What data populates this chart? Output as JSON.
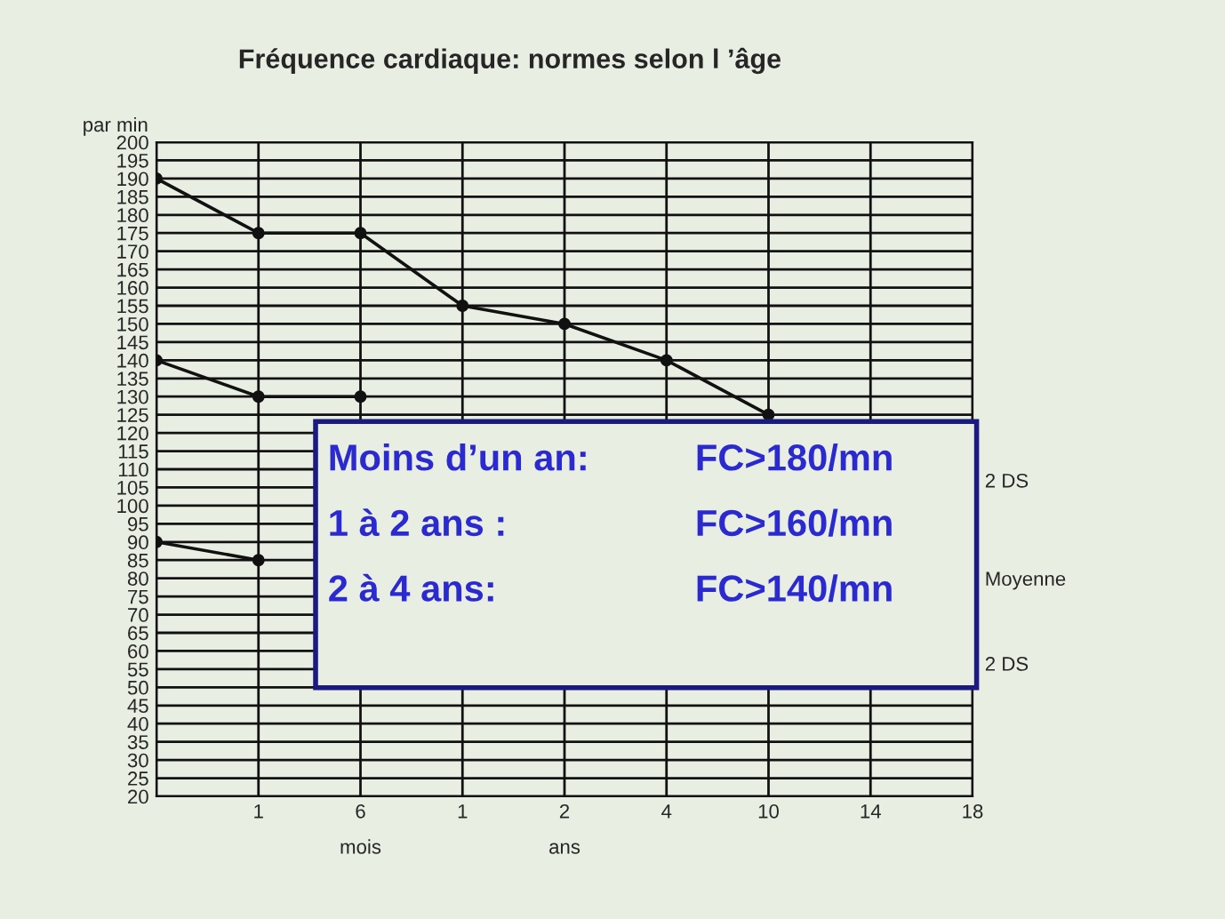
{
  "chart_data": {
    "type": "line",
    "title": "Fréquence cardiaque: normes selon l ’âge",
    "ylabel": "par min",
    "categories": [
      null,
      "1",
      "6\nmois",
      "1",
      "2\nans",
      "4",
      "10",
      "14",
      "18"
    ],
    "series": [
      {
        "color": "#111111",
        "values": [
          190,
          175,
          175,
          155,
          150,
          140,
          125,
          null,
          null
        ]
      },
      {
        "color": "#111111",
        "values": [
          140,
          130,
          130,
          null,
          null,
          null,
          null,
          null,
          null
        ]
      },
      {
        "color": "#111111",
        "values": [
          90,
          85,
          null,
          null,
          null,
          null,
          null,
          null,
          null
        ]
      }
    ],
    "ylim": [
      20,
      200
    ],
    "yticks": [
      20,
      25,
      30,
      35,
      40,
      45,
      50,
      55,
      60,
      65,
      70,
      75,
      80,
      85,
      90,
      95,
      100,
      105,
      110,
      115,
      120,
      125,
      130,
      135,
      140,
      145,
      150,
      155,
      160,
      165,
      170,
      175,
      180,
      185,
      190,
      195,
      200
    ],
    "grid": true,
    "marker": "circle",
    "line_style": "solid",
    "annotations": [
      "Moins d’un an:",
      "FC>180/mn",
      "1 à 2 ans :",
      "FC>160/mn",
      "2 à 4 ans:",
      "FC>140/mn",
      "2 DS",
      "Moyenne",
      "2 DS"
    ]
  }
}
